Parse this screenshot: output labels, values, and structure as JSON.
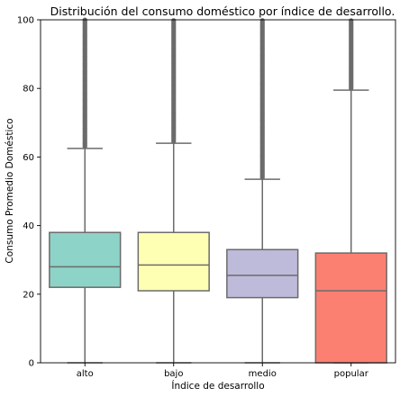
{
  "chart_data": {
    "type": "box",
    "title": "Distribución del consumo doméstico por índice de desarrollo.",
    "xlabel": "Índice de desarrollo",
    "ylabel": "Consumo Promedio Doméstico",
    "ylim": [
      0,
      100
    ],
    "yticks": [
      0,
      20,
      40,
      60,
      80,
      100
    ],
    "grid": false,
    "categories": [
      "alto",
      "bajo",
      "medio",
      "popular"
    ],
    "boxes": [
      {
        "category": "alto",
        "color": "#8dd3c7",
        "whislo": 0,
        "q1": 22,
        "median": 28,
        "q3": 38,
        "whishi": 62.5,
        "outliers_from": 62.5,
        "outliers_to": 100
      },
      {
        "category": "bajo",
        "color": "#ffffb3",
        "whislo": 0,
        "q1": 21,
        "median": 28.5,
        "q3": 38,
        "whishi": 64,
        "outliers_from": 64,
        "outliers_to": 100
      },
      {
        "category": "medio",
        "color": "#bebada",
        "whislo": 0,
        "q1": 19,
        "median": 25.5,
        "q3": 33,
        "whishi": 53.5,
        "outliers_from": 53.5,
        "outliers_to": 100
      },
      {
        "category": "popular",
        "color": "#fb8072",
        "whislo": 0,
        "q1": 0,
        "median": 21,
        "q3": 32,
        "whishi": 79.5,
        "outliers_from": 79.5,
        "outliers_to": 100
      }
    ]
  }
}
